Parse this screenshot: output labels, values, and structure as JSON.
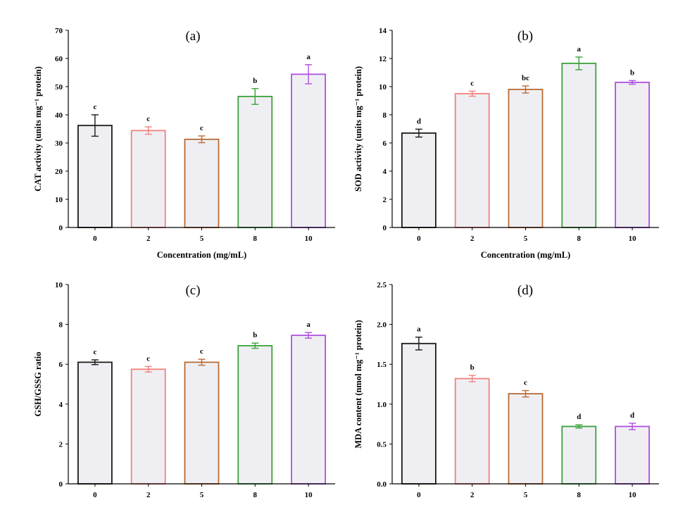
{
  "chart_data": [
    {
      "type": "bar",
      "panel": "(a)",
      "title": "(a)",
      "xlabel": "Concentration (mg/mL)",
      "ylabel": "CAT activity (units mg⁻¹ protein)",
      "categories": [
        "0",
        "2",
        "5",
        "8",
        "10"
      ],
      "values": [
        36.2,
        34.4,
        31.3,
        46.5,
        54.4
      ],
      "errors": [
        3.8,
        1.3,
        1.2,
        2.8,
        3.4
      ],
      "significance": [
        "c",
        "c",
        "c",
        "b",
        "a"
      ],
      "ylim": [
        0,
        70
      ],
      "yticks": [
        0,
        10,
        20,
        30,
        40,
        50,
        60,
        70
      ],
      "grid": false
    },
    {
      "type": "bar",
      "panel": "(b)",
      "title": "(b)",
      "xlabel": "Concentration (mg/mL)",
      "ylabel": "SOD activity (units mg⁻¹ protein)",
      "categories": [
        "0",
        "2",
        "5",
        "8",
        "10"
      ],
      "values": [
        6.7,
        9.5,
        9.8,
        11.65,
        10.3
      ],
      "errors": [
        0.28,
        0.18,
        0.25,
        0.45,
        0.13
      ],
      "significance": [
        "d",
        "c",
        "bc",
        "a",
        "b"
      ],
      "ylim": [
        0,
        14
      ],
      "yticks": [
        0,
        2,
        4,
        6,
        8,
        10,
        12,
        14
      ],
      "grid": false
    },
    {
      "type": "bar",
      "panel": "(c)",
      "title": "(c)",
      "xlabel": "",
      "ylabel": "GSH/GSSG ratio",
      "categories": [
        "0",
        "2",
        "5",
        "8",
        "10"
      ],
      "values": [
        6.1,
        5.75,
        6.1,
        6.93,
        7.45
      ],
      "errors": [
        0.12,
        0.14,
        0.15,
        0.13,
        0.14
      ],
      "significance": [
        "c",
        "c",
        "c",
        "b",
        "a"
      ],
      "ylim": [
        0,
        10
      ],
      "yticks": [
        0,
        2,
        4,
        6,
        8,
        10
      ],
      "grid": false
    },
    {
      "type": "bar",
      "panel": "(d)",
      "title": "(d)",
      "xlabel": "",
      "ylabel": "MDA content (nmol mg⁻¹ protein)",
      "categories": [
        "0",
        "2",
        "5",
        "8",
        "10"
      ],
      "values": [
        1.76,
        1.32,
        1.13,
        0.72,
        0.72
      ],
      "errors": [
        0.08,
        0.04,
        0.04,
        0.02,
        0.04
      ],
      "significance": [
        "a",
        "b",
        "c",
        "d",
        "d"
      ],
      "ylim": [
        0,
        2.5
      ],
      "yticks": [
        "0.0",
        "0.5",
        "1.0",
        "1.5",
        "2.0",
        "2.5"
      ],
      "grid": false
    }
  ],
  "colors": {
    "bar_fill": "#efeff3",
    "series": [
      "#1a1a1a",
      "#f2817d",
      "#b96a33",
      "#3aa23a",
      "#b04fe0"
    ],
    "axis": "#000000"
  }
}
